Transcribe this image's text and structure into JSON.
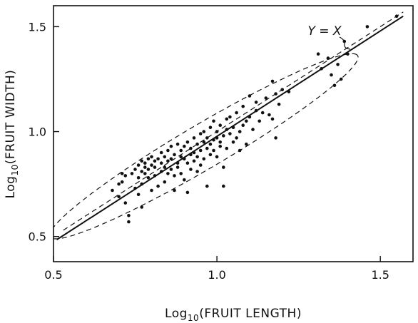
{
  "chart_data": {
    "type": "scatter",
    "title": "",
    "xlabel": "Log10(FRUIT LENGTH)",
    "ylabel": "Log10(FRUIT WIDTH)",
    "xlim": [
      0.5,
      1.6
    ],
    "ylim": [
      0.38,
      1.6
    ],
    "xticks": [
      "0.5",
      "1.0",
      "1.5"
    ],
    "xtick_values": [
      0.5,
      1.0,
      1.5
    ],
    "yticks": [
      "0.5",
      "1.0",
      "1.5"
    ],
    "ytick_values": [
      0.5,
      1.0,
      1.5
    ],
    "grid": false,
    "annotation": "Y = X",
    "reference_line": {
      "slope": 1,
      "intercept": 0,
      "style": "dashed"
    },
    "regression_line": {
      "x": [
        0.51,
        1.57
      ],
      "y": [
        0.485,
        1.55
      ]
    },
    "confidence_ellipse": {
      "center": [
        0.96,
        0.93
      ],
      "semi_major": 0.64,
      "semi_minor": 0.09,
      "angle_deg": 43
    },
    "points": [
      [
        0.68,
        0.72
      ],
      [
        0.7,
        0.69
      ],
      [
        0.7,
        0.75
      ],
      [
        0.71,
        0.76
      ],
      [
        0.71,
        0.8
      ],
      [
        0.72,
        0.79
      ],
      [
        0.72,
        0.66
      ],
      [
        0.73,
        0.6
      ],
      [
        0.73,
        0.57
      ],
      [
        0.74,
        0.8
      ],
      [
        0.75,
        0.73
      ],
      [
        0.75,
        0.82
      ],
      [
        0.76,
        0.78
      ],
      [
        0.76,
        0.84
      ],
      [
        0.76,
        0.7
      ],
      [
        0.77,
        0.86
      ],
      [
        0.77,
        0.81
      ],
      [
        0.77,
        0.75
      ],
      [
        0.77,
        0.64
      ],
      [
        0.78,
        0.85
      ],
      [
        0.78,
        0.83
      ],
      [
        0.78,
        0.8
      ],
      [
        0.79,
        0.87
      ],
      [
        0.79,
        0.82
      ],
      [
        0.79,
        0.78
      ],
      [
        0.8,
        0.88
      ],
      [
        0.8,
        0.84
      ],
      [
        0.8,
        0.72
      ],
      [
        0.81,
        0.86
      ],
      [
        0.81,
        0.83
      ],
      [
        0.81,
        0.79
      ],
      [
        0.82,
        0.87
      ],
      [
        0.82,
        0.74
      ],
      [
        0.83,
        0.9
      ],
      [
        0.83,
        0.85
      ],
      [
        0.83,
        0.81
      ],
      [
        0.84,
        0.88
      ],
      [
        0.84,
        0.83
      ],
      [
        0.84,
        0.76
      ],
      [
        0.85,
        0.91
      ],
      [
        0.85,
        0.86
      ],
      [
        0.85,
        0.8
      ],
      [
        0.86,
        0.93
      ],
      [
        0.86,
        0.87
      ],
      [
        0.86,
        0.82
      ],
      [
        0.87,
        0.89
      ],
      [
        0.87,
        0.79
      ],
      [
        0.87,
        0.72
      ],
      [
        0.88,
        0.94
      ],
      [
        0.88,
        0.85
      ],
      [
        0.88,
        0.83
      ],
      [
        0.89,
        0.91
      ],
      [
        0.89,
        0.88
      ],
      [
        0.89,
        0.8
      ],
      [
        0.9,
        0.93
      ],
      [
        0.9,
        0.87
      ],
      [
        0.9,
        0.77
      ],
      [
        0.91,
        0.95
      ],
      [
        0.91,
        0.85
      ],
      [
        0.91,
        0.71
      ],
      [
        0.92,
        0.92
      ],
      [
        0.92,
        0.89
      ],
      [
        0.92,
        0.82
      ],
      [
        0.93,
        0.97
      ],
      [
        0.93,
        0.9
      ],
      [
        0.93,
        0.86
      ],
      [
        0.94,
        0.94
      ],
      [
        0.94,
        0.88
      ],
      [
        0.94,
        0.81
      ],
      [
        0.95,
        0.99
      ],
      [
        0.95,
        0.91
      ],
      [
        0.95,
        0.84
      ],
      [
        0.96,
        1.0
      ],
      [
        0.96,
        0.95
      ],
      [
        0.96,
        0.87
      ],
      [
        0.97,
        0.97
      ],
      [
        0.97,
        0.92
      ],
      [
        0.97,
        0.74
      ],
      [
        0.98,
        1.02
      ],
      [
        0.98,
        0.94
      ],
      [
        0.98,
        0.89
      ],
      [
        0.99,
        1.05
      ],
      [
        0.99,
        0.96
      ],
      [
        0.99,
        0.91
      ],
      [
        1.0,
        1.0
      ],
      [
        1.0,
        0.97
      ],
      [
        1.0,
        0.88
      ],
      [
        1.01,
        1.03
      ],
      [
        1.01,
        0.95
      ],
      [
        1.01,
        0.93
      ],
      [
        1.02,
        0.98
      ],
      [
        1.02,
        0.83
      ],
      [
        1.02,
        0.74
      ],
      [
        1.03,
        1.06
      ],
      [
        1.03,
        1.01
      ],
      [
        1.03,
        0.92
      ],
      [
        1.04,
        1.07
      ],
      [
        1.04,
        0.99
      ],
      [
        1.05,
        1.02
      ],
      [
        1.05,
        0.95
      ],
      [
        1.06,
        1.09
      ],
      [
        1.06,
        0.97
      ],
      [
        1.07,
        1.0
      ],
      [
        1.07,
        0.91
      ],
      [
        1.08,
        1.12
      ],
      [
        1.08,
        1.03
      ],
      [
        1.09,
        1.05
      ],
      [
        1.09,
        0.94
      ],
      [
        1.1,
        1.17
      ],
      [
        1.1,
        1.07
      ],
      [
        1.11,
        1.01
      ],
      [
        1.12,
        1.14
      ],
      [
        1.12,
        1.1
      ],
      [
        1.13,
        1.05
      ],
      [
        1.14,
        1.09
      ],
      [
        1.15,
        1.16
      ],
      [
        1.16,
        1.08
      ],
      [
        1.17,
        1.24
      ],
      [
        1.17,
        1.06
      ],
      [
        1.18,
        1.18
      ],
      [
        1.18,
        0.97
      ],
      [
        1.19,
        1.13
      ],
      [
        1.2,
        1.2
      ],
      [
        1.22,
        1.19
      ],
      [
        1.31,
        1.37
      ],
      [
        1.32,
        1.3
      ],
      [
        1.34,
        1.35
      ],
      [
        1.35,
        1.27
      ],
      [
        1.36,
        1.22
      ],
      [
        1.37,
        1.32
      ],
      [
        1.38,
        1.25
      ],
      [
        1.39,
        1.43
      ],
      [
        1.4,
        1.37
      ],
      [
        1.46,
        1.5
      ],
      [
        1.55,
        1.55
      ]
    ]
  }
}
